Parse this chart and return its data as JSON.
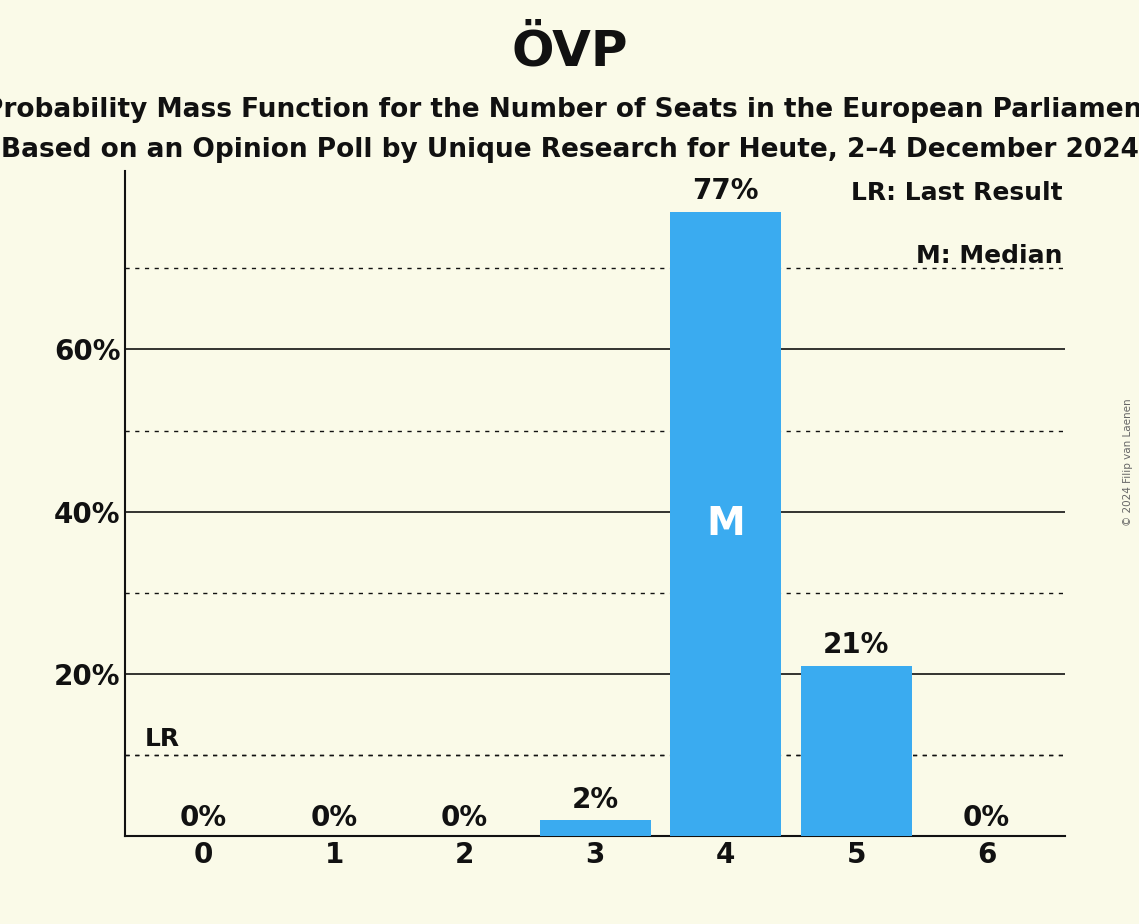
{
  "title": "ÖVP",
  "subtitle1": "Probability Mass Function for the Number of Seats in the European Parliament",
  "subtitle2": "Based on an Opinion Poll by Unique Research for Heute, 2–4 December 2024",
  "copyright": "© 2024 Filip van Laenen",
  "categories": [
    0,
    1,
    2,
    3,
    4,
    5,
    6
  ],
  "values": [
    0,
    0,
    0,
    2,
    77,
    21,
    0
  ],
  "bar_color": "#3aabf0",
  "background_color": "#fafae8",
  "text_color": "#111111",
  "ytick_labels": [
    20,
    40,
    60
  ],
  "solid_gridlines": [
    20,
    40,
    60
  ],
  "dotted_gridlines": [
    10,
    30,
    50,
    70
  ],
  "ylim": [
    0,
    82
  ],
  "lr_value": 10,
  "lr_label": "LR",
  "median_seat": 4,
  "legend_lr": "LR: Last Result",
  "legend_m": "M: Median",
  "title_fontsize": 36,
  "subtitle_fontsize": 19,
  "tick_fontsize": 20,
  "bar_label_fontsize": 20,
  "median_label_fontsize": 28,
  "legend_fontsize": 18,
  "lr_label_fontsize": 18
}
